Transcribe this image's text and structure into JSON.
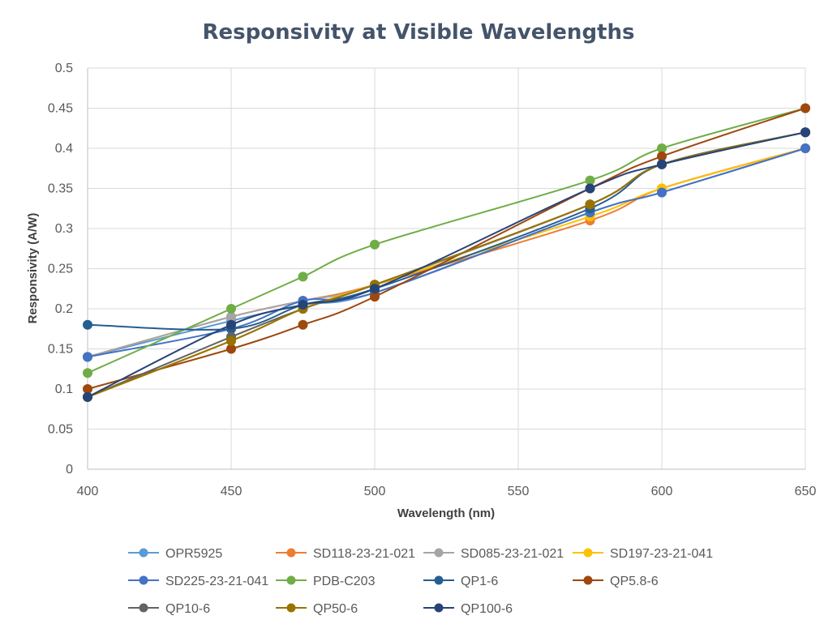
{
  "chart_data": {
    "type": "line",
    "title": "Responsivity at Visible Wavelengths",
    "xlabel": "Wavelength (nm)",
    "ylabel": "Responsivity (A/W)",
    "xlim": [
      400,
      650
    ],
    "ylim": [
      0,
      0.5
    ],
    "x_ticks": [
      "400",
      "450",
      "500",
      "550",
      "600",
      "650"
    ],
    "y_ticks": [
      "0",
      "0.05",
      "0.1",
      "0.15",
      "0.2",
      "0.25",
      "0.3",
      "0.35",
      "0.4",
      "0.45",
      "0.5"
    ],
    "grid": true,
    "legend_position": "bottom",
    "series": [
      {
        "name": "OPR5925",
        "color": "#5b9bd5",
        "points": [
          [
            400,
            0.14
          ],
          [
            450,
            0.185
          ],
          [
            475,
            0.205
          ],
          [
            500,
            0.22
          ],
          [
            575,
            0.32
          ],
          [
            600,
            0.345
          ],
          [
            650,
            0.4
          ]
        ]
      },
      {
        "name": "SD118-23-21-021",
        "color": "#ed7d31",
        "points": [
          [
            400,
            0.14
          ],
          [
            450,
            0.19
          ],
          [
            475,
            0.21
          ],
          [
            500,
            0.23
          ],
          [
            575,
            0.31
          ],
          [
            600,
            0.35
          ],
          [
            650,
            0.4
          ]
        ]
      },
      {
        "name": "SD085-23-21-021",
        "color": "#a5a5a5",
        "points": [
          [
            400,
            0.14
          ],
          [
            450,
            0.19
          ],
          [
            475,
            0.21
          ],
          [
            500,
            0.23
          ],
          [
            575,
            0.33
          ],
          [
            600,
            0.38
          ],
          [
            650,
            0.42
          ]
        ]
      },
      {
        "name": "SD197-23-21-041",
        "color": "#ffc000",
        "points": [
          [
            400,
            0.09
          ],
          [
            450,
            0.16
          ],
          [
            475,
            0.2
          ],
          [
            500,
            0.23
          ],
          [
            575,
            0.315
          ],
          [
            600,
            0.35
          ],
          [
            650,
            0.4
          ]
        ]
      },
      {
        "name": "SD225-23-21-041",
        "color": "#4472c4",
        "points": [
          [
            400,
            0.14
          ],
          [
            450,
            0.175
          ],
          [
            475,
            0.21
          ],
          [
            500,
            0.22
          ],
          [
            575,
            0.32
          ],
          [
            600,
            0.345
          ],
          [
            650,
            0.4
          ]
        ]
      },
      {
        "name": "PDB-C203",
        "color": "#70ad47",
        "points": [
          [
            400,
            0.12
          ],
          [
            450,
            0.2
          ],
          [
            475,
            0.24
          ],
          [
            500,
            0.28
          ],
          [
            575,
            0.36
          ],
          [
            600,
            0.4
          ],
          [
            650,
            0.45
          ]
        ]
      },
      {
        "name": "QP1-6",
        "color": "#255e91",
        "points": [
          [
            400,
            0.18
          ],
          [
            450,
            0.175
          ],
          [
            475,
            0.205
          ],
          [
            500,
            0.225
          ],
          [
            575,
            0.325
          ],
          [
            600,
            0.38
          ],
          [
            650,
            0.42
          ]
        ]
      },
      {
        "name": "QP5.8-6",
        "color": "#9e480e",
        "points": [
          [
            400,
            0.1
          ],
          [
            450,
            0.15
          ],
          [
            475,
            0.18
          ],
          [
            500,
            0.215
          ],
          [
            575,
            0.35
          ],
          [
            600,
            0.39
          ],
          [
            650,
            0.45
          ]
        ]
      },
      {
        "name": "QP10-6",
        "color": "#636363",
        "points": [
          [
            400,
            0.09
          ],
          [
            450,
            0.165
          ],
          [
            475,
            0.2
          ],
          [
            500,
            0.23
          ],
          [
            575,
            0.33
          ],
          [
            600,
            0.38
          ],
          [
            650,
            0.42
          ]
        ]
      },
      {
        "name": "QP50-6",
        "color": "#997300",
        "points": [
          [
            400,
            0.09
          ],
          [
            450,
            0.16
          ],
          [
            475,
            0.2
          ],
          [
            500,
            0.23
          ],
          [
            575,
            0.33
          ],
          [
            600,
            0.38
          ],
          [
            650,
            0.42
          ]
        ]
      },
      {
        "name": "QP100-6",
        "color": "#264478",
        "points": [
          [
            400,
            0.09
          ],
          [
            450,
            0.18
          ],
          [
            475,
            0.205
          ],
          [
            500,
            0.225
          ],
          [
            575,
            0.35
          ],
          [
            600,
            0.38
          ],
          [
            650,
            0.42
          ]
        ]
      }
    ]
  }
}
